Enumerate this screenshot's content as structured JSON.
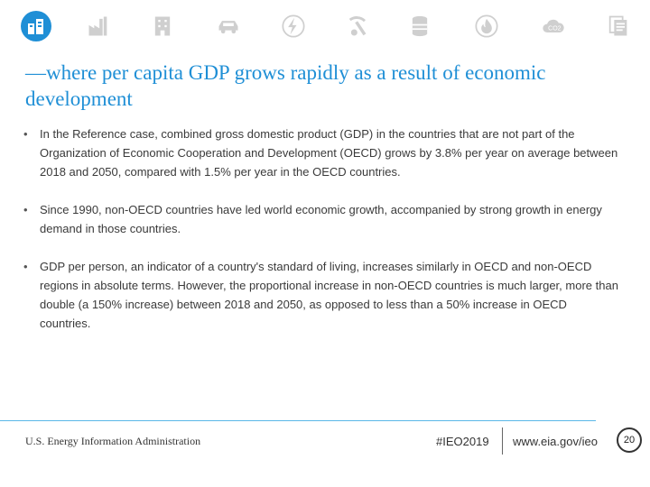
{
  "nav": {
    "icons": [
      {
        "name": "buildings-icon",
        "active": true
      },
      {
        "name": "factory-icon"
      },
      {
        "name": "office-building-icon"
      },
      {
        "name": "car-icon"
      },
      {
        "name": "lightning-icon"
      },
      {
        "name": "mining-icon"
      },
      {
        "name": "oil-barrel-icon"
      },
      {
        "name": "flame-icon"
      },
      {
        "name": "co2-icon"
      },
      {
        "name": "documents-icon"
      }
    ],
    "active_color": "#1f8fd6",
    "inactive_color": "#cfcfcf"
  },
  "title": "—where per capita GDP grows rapidly as a result of economic development",
  "bullets": [
    {
      "marker": "•",
      "text": "In the Reference case, combined gross domestic product (GDP) in the countries that are not part of the Organization of Economic Cooperation and Development (OECD) grows by 3.8% per year on average between 2018 and 2050, compared with 1.5% per year in the OECD countries."
    },
    {
      "marker": "•",
      "text": "Since 1990, non-OECD countries have led world economic growth, accompanied by strong growth in energy demand in those countries."
    },
    {
      "marker": "•",
      "text": "GDP per person, an indicator of a country's standard of living, increases similarly in OECD and non-OECD regions in absolute terms. However, the proportional increase in non-OECD countries is much larger, more than double (a 150% increase) between 2018 and 2050, as opposed to less than a 50% increase in OECD countries."
    }
  ],
  "footer": {
    "org": "U.S. Energy Information Administration",
    "hashtag": "#IEO2019",
    "url": "www.eia.gov/ieo",
    "page_number": "20"
  }
}
